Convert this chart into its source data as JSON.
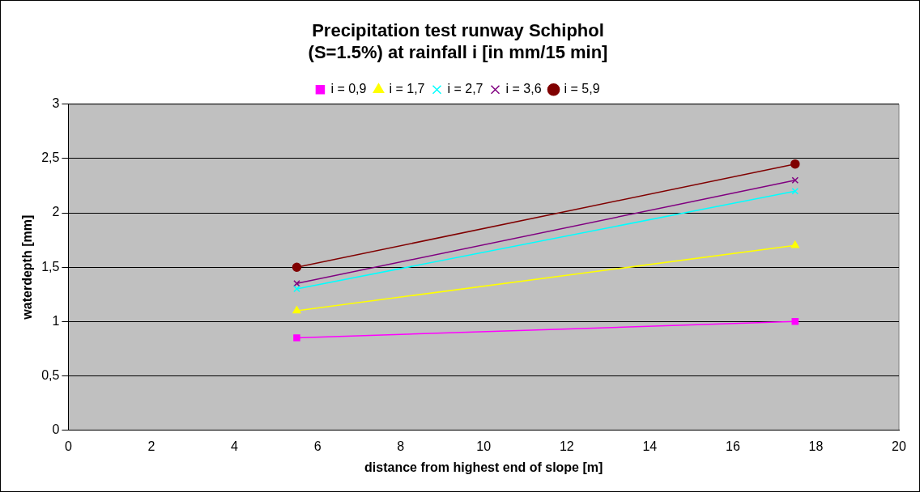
{
  "chart_data": {
    "type": "line",
    "title": "Precipitation test runway Schiphol\n(S=1.5%) at rainfall i [in mm/15 min]",
    "xlabel": "distance from highest end of slope [m]",
    "ylabel": "waterdepth [mm]",
    "x": [
      5.5,
      17.5
    ],
    "series": [
      {
        "name": "i = 0,9",
        "color": "#ff00ff",
        "marker": "square",
        "values": [
          0.85,
          1.0
        ]
      },
      {
        "name": "i = 1,7",
        "color": "#ffff00",
        "marker": "triangle",
        "values": [
          1.1,
          1.7
        ]
      },
      {
        "name": "i = 2,7",
        "color": "#00ffff",
        "marker": "cross",
        "values": [
          1.3,
          2.2
        ]
      },
      {
        "name": "i = 3,6",
        "color": "#800080",
        "marker": "cross",
        "values": [
          1.35,
          2.3
        ]
      },
      {
        "name": "i = 5,9",
        "color": "#800000",
        "marker": "circle",
        "values": [
          1.5,
          2.45
        ]
      }
    ],
    "xlim": [
      0,
      20
    ],
    "xticks": [
      0,
      2,
      4,
      6,
      8,
      10,
      12,
      14,
      16,
      18,
      20
    ],
    "ylim": [
      0,
      3
    ],
    "yticks": [
      0,
      {
        "value": 0.5,
        "label": "0,5"
      },
      1,
      {
        "value": 1.5,
        "label": "1,5"
      },
      2,
      {
        "value": 2.5,
        "label": "2,5"
      },
      3
    ],
    "grid": "y",
    "legend": "top"
  }
}
